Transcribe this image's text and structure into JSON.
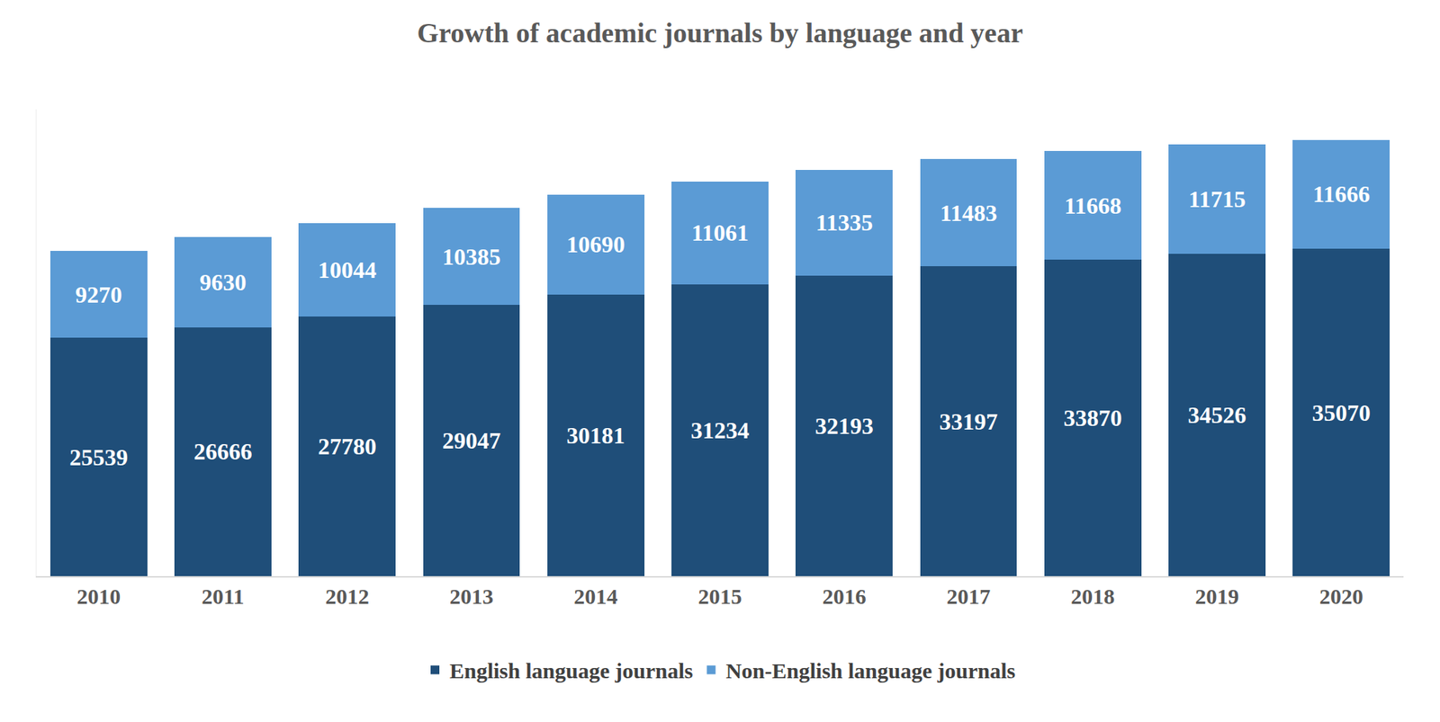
{
  "chart_data": {
    "type": "bar",
    "title": "Growth of academic journals by language and year",
    "categories": [
      "2010",
      "2011",
      "2012",
      "2013",
      "2014",
      "2015",
      "2016",
      "2017",
      "2018",
      "2019",
      "2020"
    ],
    "series": [
      {
        "name": "English language journals",
        "color": "#1f4e79",
        "values": [
          25539,
          26666,
          27780,
          29047,
          30181,
          31234,
          32193,
          33197,
          33870,
          34526,
          35070
        ]
      },
      {
        "name": "Non-English language journals",
        "color": "#5b9bd5",
        "values": [
          9270,
          9630,
          10044,
          10385,
          10690,
          11061,
          11335,
          11483,
          11668,
          11715,
          11666
        ]
      }
    ],
    "stacked": true,
    "data_labels": true,
    "tick_labels": "x",
    "grid": false,
    "legend": "bottom",
    "ylim": [
      0,
      50000
    ]
  }
}
